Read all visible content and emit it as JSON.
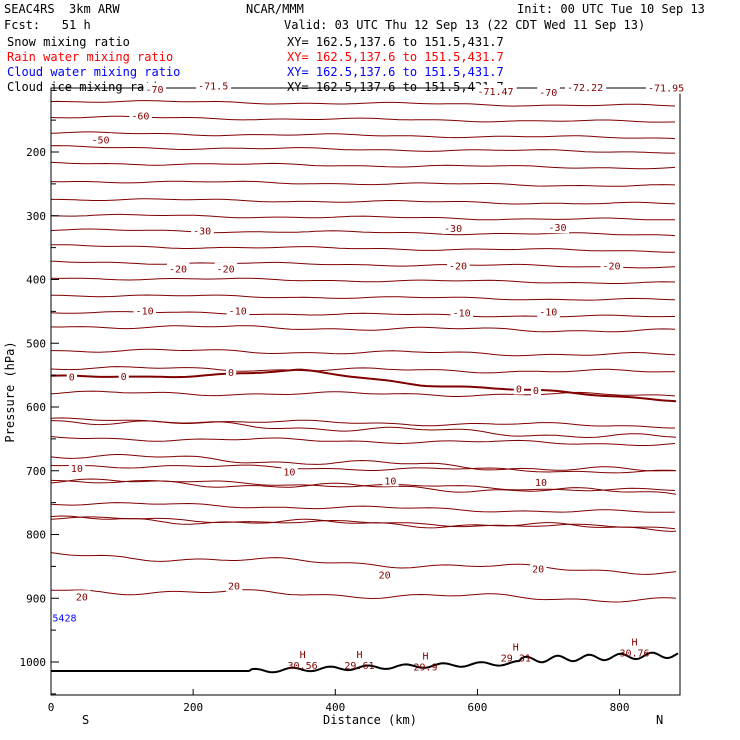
{
  "header": {
    "title_left": "SEAC4RS  3km ARW",
    "title_center": "NCAR/MMM",
    "init": "Init: 00 UTC Tue 10 Sep 13",
    "fcst": "Fcst:   51 h",
    "valid": "Valid: 03 UTC Thu 12 Sep 13 (22 CDT Wed 11 Sep 13)",
    "fields": [
      {
        "label": "Snow mixing ratio",
        "xy": "XY= 162.5,137.6 to 151.5,431.7",
        "color": "#000000"
      },
      {
        "label": "Rain water mixing ratio",
        "xy": "XY= 162.5,137.6 to 151.5,431.7",
        "color": "#ff0000"
      },
      {
        "label": "Cloud water mixing ratio",
        "xy": "XY= 162.5,137.6 to 151.5,431.7",
        "color": "#0000ff"
      },
      {
        "label": "Cloud ice mixing ratio",
        "xy": "XY= 162.5,137.6 to 151.5,431.7",
        "color": "#000000"
      }
    ]
  },
  "chart_data": {
    "type": "line",
    "xlabel": "Distance (km)",
    "ylabel": "Pressure (hPa)",
    "xlim": [
      0,
      885
    ],
    "ylim": [
      1047,
      100
    ],
    "x_ticks": [
      0,
      200,
      400,
      600,
      800
    ],
    "y_ticks": [
      200,
      300,
      400,
      500,
      600,
      700,
      800,
      900,
      1000
    ],
    "direction_labels": {
      "start": "S",
      "end": "N"
    },
    "colors": {
      "isotherm": "#800000",
      "zero_isotherm": "#800000",
      "terrain": "#000000",
      "cloud": "#0000ff"
    },
    "contour_labels": [
      {
        "text": "-70",
        "x": 133,
        "p": 101
      },
      {
        "text": "-71.5",
        "x": 207,
        "p": 96
      },
      {
        "text": "-71.47",
        "x": 600,
        "p": 104
      },
      {
        "text": "-70",
        "x": 687,
        "p": 106
      },
      {
        "text": "-72.22",
        "x": 726,
        "p": 98
      },
      {
        "text": "-71.95",
        "x": 840,
        "p": 99
      },
      {
        "text": "-60",
        "x": 113,
        "p": 143
      },
      {
        "text": "-50",
        "x": 57,
        "p": 180
      },
      {
        "text": "-30",
        "x": 200,
        "p": 323
      },
      {
        "text": "-30",
        "x": 553,
        "p": 319
      },
      {
        "text": "-30",
        "x": 700,
        "p": 318
      },
      {
        "text": "-20",
        "x": 166,
        "p": 383
      },
      {
        "text": "-20",
        "x": 233,
        "p": 383
      },
      {
        "text": "-20",
        "x": 560,
        "p": 378
      },
      {
        "text": "-20",
        "x": 776,
        "p": 378
      },
      {
        "text": "-10",
        "x": 119,
        "p": 449
      },
      {
        "text": "-10",
        "x": 250,
        "p": 449
      },
      {
        "text": "-10",
        "x": 565,
        "p": 452
      },
      {
        "text": "-10",
        "x": 687,
        "p": 450
      },
      {
        "text": "0",
        "x": 25,
        "p": 552
      },
      {
        "text": "0",
        "x": 98,
        "p": 551
      },
      {
        "text": "0",
        "x": 249,
        "p": 545
      },
      {
        "text": "0",
        "x": 654,
        "p": 571
      },
      {
        "text": "0",
        "x": 678,
        "p": 573
      },
      {
        "text": "10",
        "x": 28,
        "p": 696
      },
      {
        "text": "10",
        "x": 327,
        "p": 701
      },
      {
        "text": "10",
        "x": 469,
        "p": 715
      },
      {
        "text": "10",
        "x": 681,
        "p": 718
      },
      {
        "text": "20",
        "x": 35,
        "p": 897
      },
      {
        "text": "20",
        "x": 249,
        "p": 880
      },
      {
        "text": "20",
        "x": 461,
        "p": 863
      },
      {
        "text": "20",
        "x": 677,
        "p": 853
      }
    ],
    "cloud_labels": [
      {
        "text": "5428",
        "x": 2,
        "p": 930
      }
    ],
    "high_labels": [
      {
        "text": "H",
        "x": 354,
        "p": 994,
        "value": "30.56"
      },
      {
        "text": "H",
        "x": 434,
        "p": 994,
        "value": "29.61"
      },
      {
        "text": "H",
        "x": 527,
        "p": 996,
        "value": "29.9"
      },
      {
        "text": "H",
        "x": 654,
        "p": 982,
        "value": "29.31"
      },
      {
        "text": "H",
        "x": 821,
        "p": 974,
        "value": "30.76"
      }
    ]
  }
}
